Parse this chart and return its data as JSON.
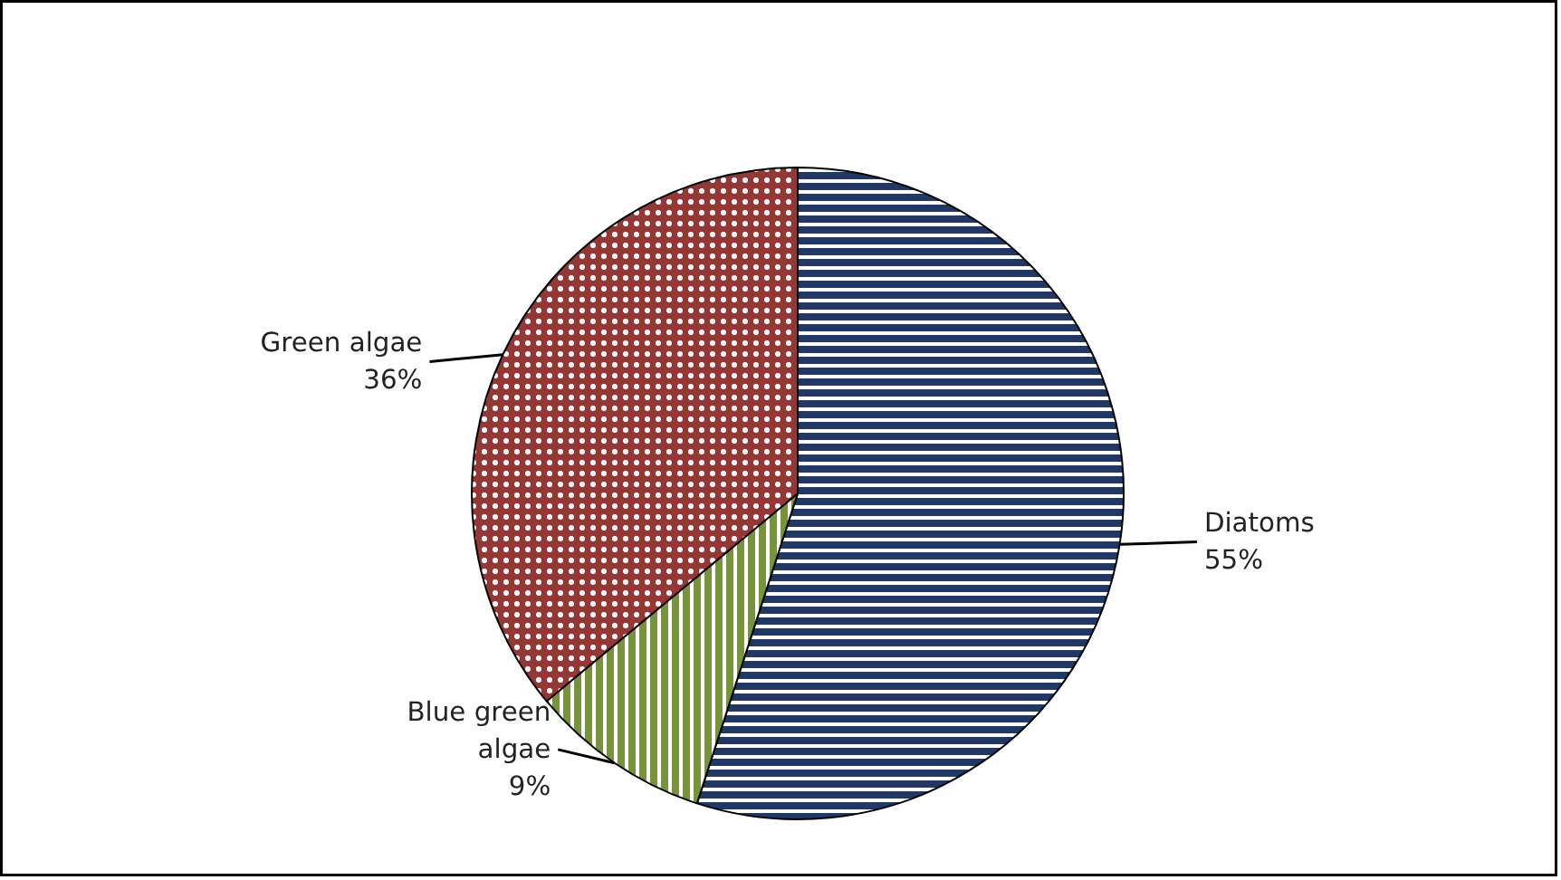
{
  "chart_data": {
    "type": "pie",
    "categories": [
      "Diatoms",
      "Blue green algae",
      "Green algae"
    ],
    "values": [
      55,
      9,
      36
    ],
    "colors": [
      "#1f3864",
      "#77933c",
      "#953735"
    ],
    "value_labels": [
      "55%",
      "9%",
      "36%"
    ]
  }
}
